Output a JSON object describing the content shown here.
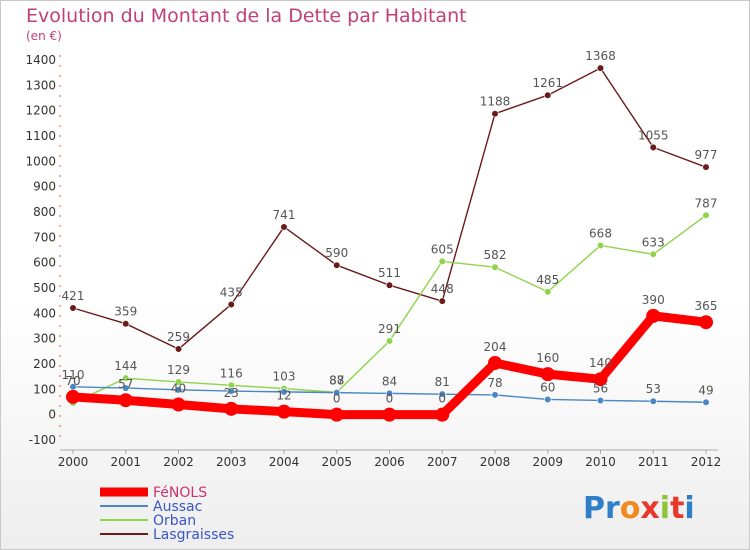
{
  "chart_data": {
    "type": "line",
    "title": "Evolution du Montant de la Dette par Habitant",
    "subtitle": "(en €)",
    "categories": [
      "2000",
      "2001",
      "2002",
      "2003",
      "2004",
      "2005",
      "2006",
      "2007",
      "2008",
      "2009",
      "2010",
      "2011",
      "2012"
    ],
    "ylim": [
      -100,
      1400
    ],
    "yticks": [
      -100,
      0,
      100,
      200,
      300,
      400,
      500,
      600,
      700,
      800,
      900,
      1000,
      1100,
      1200,
      1300,
      1400
    ],
    "grid": false,
    "legend_position": "bottom-left",
    "series": [
      {
        "name": "Lasgraisses",
        "color": "#6b1a1a",
        "values": [
          421,
          359,
          259,
          435,
          741,
          590,
          511,
          448,
          1188,
          1261,
          1368,
          1055,
          977
        ],
        "labels": [
          "421",
          "359",
          "259",
          "435",
          "741",
          "590",
          "511",
          "448",
          "1188",
          "1261",
          "1368",
          "1055",
          "977"
        ]
      },
      {
        "name": "Orban",
        "color": "#8fd44a",
        "values": [
          46,
          144,
          129,
          116,
          103,
          88,
          291,
          605,
          582,
          485,
          668,
          633,
          787
        ],
        "labels": [
          "",
          "144",
          "129",
          "116",
          "103",
          "88",
          "291",
          "605",
          "582",
          "485",
          "668",
          "633",
          "787"
        ]
      },
      {
        "name": "Aussac",
        "color": "#4a86c4",
        "values": [
          110,
          105,
          98,
          93,
          90,
          87,
          84,
          81,
          78,
          60,
          56,
          53,
          49
        ],
        "labels": [
          "110",
          "",
          "",
          "",
          "",
          "87",
          "84",
          "81",
          "78",
          "60",
          "56",
          "53",
          "49"
        ]
      },
      {
        "name": "FéNOLS",
        "color": "#ff0000",
        "values": [
          70,
          57,
          40,
          23,
          12,
          0,
          0,
          0,
          204,
          160,
          140,
          390,
          365
        ],
        "labels": [
          "70",
          "57",
          "40",
          "23",
          "12",
          "0",
          "0",
          "0",
          "204",
          "160",
          "140",
          "390",
          "365"
        ]
      }
    ]
  },
  "logo": {
    "text": "Proxiti",
    "letters": [
      "P",
      "r",
      "o",
      "x",
      "i",
      "t",
      "i"
    ],
    "colors": [
      "#2f7fc8",
      "#2f7fc8",
      "#f08a1c",
      "#e8382c",
      "#8fc43a",
      "#e8382c",
      "#2f7fc8"
    ]
  }
}
